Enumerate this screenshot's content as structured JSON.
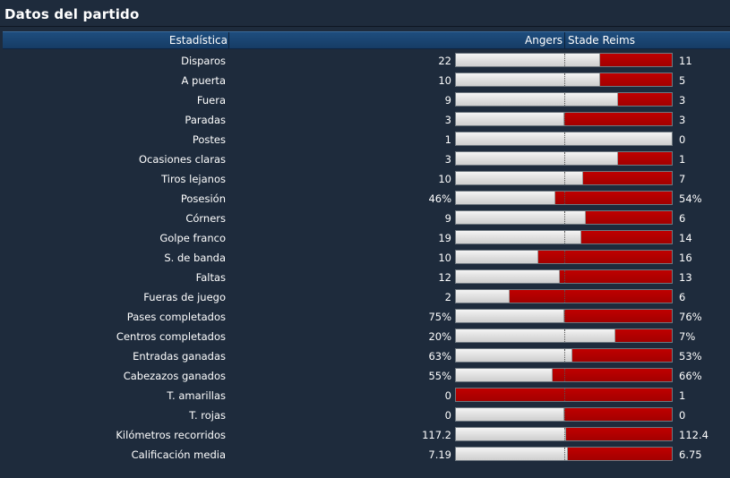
{
  "title": "Datos del partido",
  "header": {
    "stat_label": "Estadística",
    "home_team": "Angers",
    "away_team": "Stade Reims"
  },
  "stats": [
    {
      "label": "Disparos",
      "home": "22",
      "away": "11",
      "home_share": 0.67
    },
    {
      "label": "A puerta",
      "home": "10",
      "away": "5",
      "home_share": 0.67
    },
    {
      "label": "Fuera",
      "home": "9",
      "away": "3",
      "home_share": 0.75
    },
    {
      "label": "Paradas",
      "home": "3",
      "away": "3",
      "home_share": 0.5
    },
    {
      "label": "Postes",
      "home": "1",
      "away": "0",
      "home_share": 1.0
    },
    {
      "label": "Ocasiones claras",
      "home": "3",
      "away": "1",
      "home_share": 0.75
    },
    {
      "label": "Tiros lejanos",
      "home": "10",
      "away": "7",
      "home_share": 0.59
    },
    {
      "label": "Posesión",
      "home": "46%",
      "away": "54%",
      "home_share": 0.46
    },
    {
      "label": "Córners",
      "home": "9",
      "away": "6",
      "home_share": 0.6
    },
    {
      "label": "Golpe franco",
      "home": "19",
      "away": "14",
      "home_share": 0.58
    },
    {
      "label": "S. de banda",
      "home": "10",
      "away": "16",
      "home_share": 0.38
    },
    {
      "label": "Faltas",
      "home": "12",
      "away": "13",
      "home_share": 0.48
    },
    {
      "label": "Fueras de juego",
      "home": "2",
      "away": "6",
      "home_share": 0.25
    },
    {
      "label": "Pases completados",
      "home": "75%",
      "away": "76%",
      "home_share": 0.5
    },
    {
      "label": "Centros completados",
      "home": "20%",
      "away": "7%",
      "home_share": 0.74
    },
    {
      "label": "Entradas ganadas",
      "home": "63%",
      "away": "53%",
      "home_share": 0.54
    },
    {
      "label": "Cabezazos ganados",
      "home": "55%",
      "away": "66%",
      "home_share": 0.45
    },
    {
      "label": "T. amarillas",
      "home": "0",
      "away": "1",
      "home_share": 0.0
    },
    {
      "label": "T. rojas",
      "home": "0",
      "away": "0",
      "home_share": 0.5
    },
    {
      "label": "Kilómetros recorridos",
      "home": "117.2",
      "away": "112.4",
      "home_share": 0.51
    },
    {
      "label": "Calificación media",
      "home": "7.19",
      "away": "6.75",
      "home_share": 0.52
    }
  ]
}
